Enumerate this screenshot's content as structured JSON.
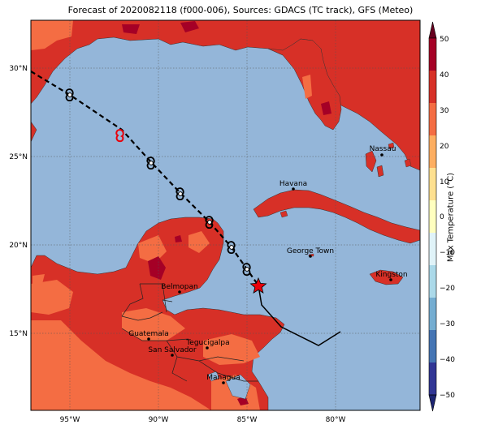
{
  "title": "Forecast of 2020082118 (f000-006), Sources: GDACS (TC track), GFS (Meteo)",
  "lon_ticks": [
    "95°W",
    "90°W",
    "85°W",
    "80°W"
  ],
  "lat_ticks": [
    "30°N",
    "25°N",
    "20°N",
    "15°N"
  ],
  "colorbar": {
    "label": "Max Temperature (°C)",
    "ticks": [
      "50",
      "40",
      "30",
      "20",
      "10",
      "0",
      "−10",
      "−20",
      "−30",
      "−40",
      "−50"
    ],
    "colors": [
      "#67001f",
      "#a50026",
      "#d73027",
      "#f46d43",
      "#fdae61",
      "#fee090",
      "#ffffbf",
      "#e0f3f8",
      "#abd9e9",
      "#74add1",
      "#4575b4",
      "#313695",
      "#1c2472"
    ]
  },
  "cities": [
    {
      "name": "Nassau"
    },
    {
      "name": "Havana"
    },
    {
      "name": "George Town"
    },
    {
      "name": "Kingston"
    },
    {
      "name": "Belmopan"
    },
    {
      "name": "Guatemala"
    },
    {
      "name": "Tegucigalpa"
    },
    {
      "name": "San Salvador"
    },
    {
      "name": "Managua"
    }
  ],
  "colors": {
    "ocean": "#94b6d9",
    "land_hot": "#d73027",
    "land_warm": "#f46d43",
    "land_very_hot": "#a50026",
    "track_icon_red": "#e8000b"
  }
}
